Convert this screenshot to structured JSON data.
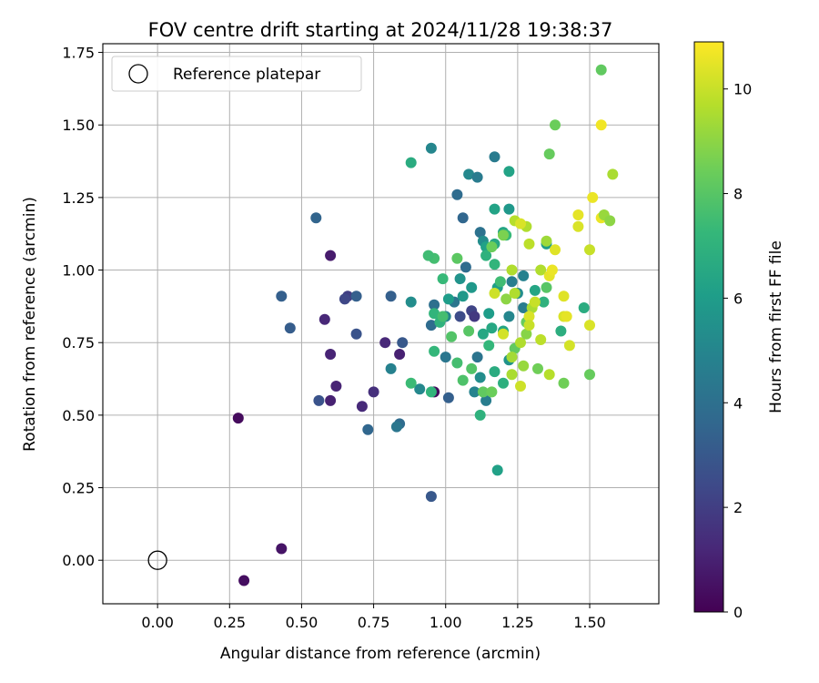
{
  "chart_data": {
    "type": "scatter",
    "title": "FOV centre drift starting at 2024/11/28 19:38:37",
    "xlabel": "Angular distance from reference (arcmin)",
    "ylabel": "Rotation from reference (arcmin)",
    "xlim": [
      -0.19,
      1.74
    ],
    "ylim": [
      -0.15,
      1.78
    ],
    "xticks": [
      "0.00",
      "0.25",
      "0.50",
      "0.75",
      "1.00",
      "1.25",
      "1.50"
    ],
    "yticks": [
      "0.00",
      "0.25",
      "0.50",
      "0.75",
      "1.00",
      "1.25",
      "1.50",
      "1.75"
    ],
    "grid": true,
    "legend": {
      "placement": "top-left",
      "entries": [
        {
          "label": "Reference platepar",
          "marker": "open-circle"
        }
      ]
    },
    "reference_point": {
      "x": 0.0,
      "y": 0.0
    },
    "colorbar": {
      "label": "Hours from first FF file",
      "min": 0,
      "max": 10.9,
      "ticks": [
        "0",
        "2",
        "4",
        "6",
        "8",
        "10"
      ],
      "colormap": "viridis"
    },
    "points": [
      [
        0.28,
        0.49,
        0.3
      ],
      [
        0.3,
        -0.07,
        0.4
      ],
      [
        0.43,
        0.04,
        0.6
      ],
      [
        0.6,
        1.05,
        0.8
      ],
      [
        0.58,
        0.83,
        1.2
      ],
      [
        0.6,
        0.71,
        1.1
      ],
      [
        0.6,
        0.55,
        1.0
      ],
      [
        0.62,
        0.6,
        1.1
      ],
      [
        0.71,
        0.53,
        1.3
      ],
      [
        0.75,
        0.58,
        1.5
      ],
      [
        0.79,
        0.75,
        1.2
      ],
      [
        0.84,
        0.71,
        1.0
      ],
      [
        0.96,
        0.58,
        0.3
      ],
      [
        0.66,
        0.91,
        2.0
      ],
      [
        0.65,
        0.9,
        2.3
      ],
      [
        0.56,
        0.55,
        2.8
      ],
      [
        0.95,
        0.22,
        3.0
      ],
      [
        0.43,
        0.91,
        3.3
      ],
      [
        0.46,
        0.8,
        3.2
      ],
      [
        0.55,
        1.18,
        3.5
      ],
      [
        0.69,
        0.91,
        3.3
      ],
      [
        0.69,
        0.78,
        2.8
      ],
      [
        0.73,
        0.45,
        3.6
      ],
      [
        0.81,
        0.91,
        3.3
      ],
      [
        0.85,
        0.75,
        3.0
      ],
      [
        0.84,
        0.47,
        3.8
      ],
      [
        0.83,
        0.46,
        4.3
      ],
      [
        0.81,
        0.66,
        4.8
      ],
      [
        0.88,
        0.89,
        5.3
      ],
      [
        0.91,
        0.59,
        5.1
      ],
      [
        0.95,
        0.81,
        3.8
      ],
      [
        0.96,
        0.88,
        4.0
      ],
      [
        1.0,
        0.7,
        4.3
      ],
      [
        1.01,
        0.56,
        3.3
      ],
      [
        1.05,
        0.84,
        2.5
      ],
      [
        1.09,
        0.86,
        2.2
      ],
      [
        1.1,
        0.84,
        1.8
      ],
      [
        1.07,
        1.01,
        3.8
      ],
      [
        1.04,
        1.26,
        3.8
      ],
      [
        1.06,
        1.18,
        3.6
      ],
      [
        1.08,
        1.33,
        5.1
      ],
      [
        1.11,
        1.32,
        4.5
      ],
      [
        0.95,
        1.42,
        5.0
      ],
      [
        1.17,
        1.39,
        4.5
      ],
      [
        1.12,
        1.13,
        4.1
      ],
      [
        1.13,
        1.1,
        5.3
      ],
      [
        1.14,
        0.55,
        4.6
      ],
      [
        1.1,
        0.58,
        4.9
      ],
      [
        1.11,
        0.7,
        4.2
      ],
      [
        1.12,
        0.63,
        5.3
      ],
      [
        1.05,
        0.97,
        5.6
      ],
      [
        1.03,
        0.89,
        4.3
      ],
      [
        1.09,
        0.94,
        5.8
      ],
      [
        1.06,
        0.91,
        5.8
      ],
      [
        1.0,
        0.84,
        5.0
      ],
      [
        1.01,
        0.9,
        6.0
      ],
      [
        1.15,
        0.85,
        6.0
      ],
      [
        1.18,
        0.94,
        6.1
      ],
      [
        1.2,
        1.13,
        6.4
      ],
      [
        1.22,
        1.34,
        6.3
      ],
      [
        1.22,
        1.21,
        5.8
      ],
      [
        1.17,
        1.21,
        6.3
      ],
      [
        1.17,
        1.09,
        6.5
      ],
      [
        1.14,
        1.08,
        6.2
      ],
      [
        1.16,
        0.8,
        6.5
      ],
      [
        1.13,
        0.78,
        6.5
      ],
      [
        1.2,
        0.79,
        6.4
      ],
      [
        1.22,
        0.84,
        5.0
      ],
      [
        1.27,
        0.98,
        4.8
      ],
      [
        1.23,
        0.96,
        4.6
      ],
      [
        1.25,
        0.92,
        5.3
      ],
      [
        1.27,
        0.87,
        4.6
      ],
      [
        1.31,
        0.93,
        6.4
      ],
      [
        1.35,
        1.09,
        6.0
      ],
      [
        1.34,
        0.89,
        7.0
      ],
      [
        1.4,
        0.79,
        6.8
      ],
      [
        1.48,
        0.87,
        6.7
      ],
      [
        0.88,
        1.37,
        6.7
      ],
      [
        1.18,
        0.31,
        6.2
      ],
      [
        1.12,
        0.5,
        7.0
      ],
      [
        1.17,
        0.65,
        6.7
      ],
      [
        1.2,
        0.61,
        6.9
      ],
      [
        1.22,
        0.69,
        5.6
      ],
      [
        1.15,
        0.74,
        7.2
      ],
      [
        1.14,
        1.05,
        7.0
      ],
      [
        1.17,
        1.02,
        7.1
      ],
      [
        1.19,
        0.96,
        7.5
      ],
      [
        1.21,
        1.12,
        7.3
      ],
      [
        0.96,
        1.04,
        7.6
      ],
      [
        0.99,
        0.97,
        7.3
      ],
      [
        0.98,
        0.82,
        7.0
      ],
      [
        0.96,
        0.85,
        7.1
      ],
      [
        0.99,
        0.84,
        7.6
      ],
      [
        0.94,
        1.05,
        7.5
      ],
      [
        0.96,
        0.72,
        7.2
      ],
      [
        0.95,
        0.58,
        7.1
      ],
      [
        0.88,
        0.61,
        7.4
      ],
      [
        1.04,
        0.68,
        7.6
      ],
      [
        1.02,
        0.77,
        7.9
      ],
      [
        1.06,
        0.62,
        7.8
      ],
      [
        1.08,
        0.79,
        8.0
      ],
      [
        1.09,
        0.66,
        7.9
      ],
      [
        1.13,
        0.58,
        8.2
      ],
      [
        1.16,
        0.58,
        8.4
      ],
      [
        1.04,
        1.04,
        8.1
      ],
      [
        1.16,
        1.08,
        8.4
      ],
      [
        1.2,
        1.12,
        8.7
      ],
      [
        1.24,
        0.73,
        8.2
      ],
      [
        1.28,
        0.82,
        8.3
      ],
      [
        1.32,
        0.66,
        8.5
      ],
      [
        1.35,
        0.94,
        8.0
      ],
      [
        1.36,
        1.4,
        8.3
      ],
      [
        1.38,
        1.5,
        8.4
      ],
      [
        1.54,
        1.69,
        8.2
      ],
      [
        1.41,
        0.61,
        8.5
      ],
      [
        1.5,
        0.64,
        8.3
      ],
      [
        1.21,
        0.9,
        9.0
      ],
      [
        1.23,
        0.64,
        9.5
      ],
      [
        1.23,
        0.7,
        9.4
      ],
      [
        1.26,
        0.75,
        9.6
      ],
      [
        1.24,
        0.92,
        9.6
      ],
      [
        1.27,
        0.67,
        9.2
      ],
      [
        1.28,
        0.78,
        8.9
      ],
      [
        1.3,
        0.87,
        9.5
      ],
      [
        1.33,
        0.76,
        9.8
      ],
      [
        1.33,
        1.0,
        9.6
      ],
      [
        1.35,
        1.1,
        9.3
      ],
      [
        1.29,
        1.09,
        9.8
      ],
      [
        1.28,
        1.15,
        9.6
      ],
      [
        1.24,
        1.17,
        9.7
      ],
      [
        1.26,
        0.6,
        10.1
      ],
      [
        1.26,
        1.16,
        10.3
      ],
      [
        1.29,
        0.84,
        10.3
      ],
      [
        1.29,
        0.81,
        10.0
      ],
      [
        1.31,
        0.89,
        10.0
      ],
      [
        1.36,
        0.64,
        9.7
      ],
      [
        1.36,
        0.98,
        10.5
      ],
      [
        1.37,
        1.0,
        10.6
      ],
      [
        1.38,
        1.07,
        10.4
      ],
      [
        1.41,
        0.91,
        10.4
      ],
      [
        1.41,
        0.84,
        10.3
      ],
      [
        1.42,
        0.84,
        10.5
      ],
      [
        1.43,
        0.74,
        10.2
      ],
      [
        1.46,
        1.15,
        10.3
      ],
      [
        1.46,
        1.19,
        10.5
      ],
      [
        1.5,
        1.07,
        10.0
      ],
      [
        1.5,
        0.81,
        10.3
      ],
      [
        1.51,
        1.25,
        10.6
      ],
      [
        1.54,
        1.18,
        10.6
      ],
      [
        1.54,
        1.5,
        10.7
      ],
      [
        1.55,
        1.19,
        9.2
      ],
      [
        1.57,
        1.17,
        9.0
      ],
      [
        1.58,
        1.33,
        9.5
      ],
      [
        1.17,
        0.92,
        10.1
      ],
      [
        1.2,
        0.78,
        10.2
      ],
      [
        1.23,
        1.0,
        9.6
      ]
    ]
  }
}
